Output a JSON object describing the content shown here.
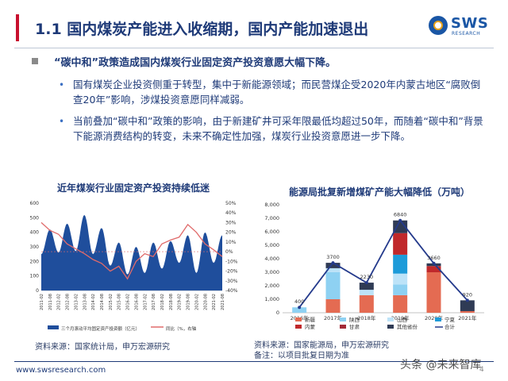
{
  "page": {
    "title": "1.1 国内煤炭产能进入收缩期，国内产能加速退出",
    "logo_text": "SWS",
    "logo_sub": "RESEARCH",
    "heading": "“碳中和”政策造成国内煤炭行业固定资产投资意愿大幅下降。",
    "bullet1": "国有煤炭企业投资侧重于转型，集中于新能源领域；而民营煤企受2020年内蒙古地区“腐败倒查20年”影响，涉煤投资意愿同样减弱。",
    "bullet2": "当前叠加“碳中和”政策的影响，由于新建矿井可采年限最低均超过50年，而随着“碳中和”背景下能源消费结构的转变，未来不确定性加强，煤炭行业投资意愿进一步下降。",
    "footer_url": "www.swsresearch.com",
    "page_number": "4",
    "watermark": "头条 @未来智库"
  },
  "chart_left": {
    "title": "近年煤炭行业固定资产投资持续低迷",
    "source": "资料来源：国家统计局，申万宏源研究",
    "legend": [
      "三个月滚动平均固定资产投资额（亿元）",
      "同比（%，右轴"
    ],
    "y_left_ticks": [
      "600",
      "500",
      "400",
      "300",
      "200",
      "100",
      "0"
    ],
    "y_right_ticks": [
      "50%",
      "40%",
      "30%",
      "20%",
      "10%",
      "0%",
      "-10%",
      "-20%",
      "-30%",
      "-40%"
    ],
    "x_ticks": [
      "2011-02",
      "2011-08",
      "2012-02",
      "2012-08",
      "2013-02",
      "2013-08",
      "2014-02",
      "2014-08",
      "2015-02",
      "2015-08",
      "2016-02",
      "2016-08",
      "2017-02",
      "2017-08",
      "2018-02",
      "2018-08",
      "2019-02",
      "2019-08",
      "2020-02",
      "2020-08",
      "2021-02",
      "2021-08"
    ]
  },
  "chart_right": {
    "title": "能源局批复新增煤矿产能大幅降低（万吨）",
    "source": "资料来源：国家能源局，申万宏源研究",
    "note": "备注：以项目批复日期为准",
    "y_ticks": [
      "8,000",
      "7,000",
      "6,000",
      "5,000",
      "4,000",
      "3,000",
      "2,000",
      "1,000",
      "0"
    ],
    "legend": [
      "新疆",
      "陕西",
      "山西",
      "宁夏",
      "内蒙",
      "甘肃",
      "其他省份",
      "合计"
    ],
    "colors": {
      "新疆": "#e46b52",
      "陕西": "#8ed1f2",
      "山西": "#bde3f8",
      "宁夏": "#1d9bd9",
      "内蒙": "#c0282b",
      "甘肃": "#a32a37",
      "其他省份": "#2f3b55",
      "合计": "#243a8c"
    }
  },
  "chart_data": [
    {
      "type": "area",
      "title": "近年煤炭行业固定资产投资持续低迷",
      "series": [
        {
          "name": "三个月滚动平均固定资产投资额（亿元）",
          "x": [
            "2011-02",
            "2011-08",
            "2012-02",
            "2012-08",
            "2013-02",
            "2013-08",
            "2014-02",
            "2014-08",
            "2015-02",
            "2015-08",
            "2016-02",
            "2016-08",
            "2017-02",
            "2017-08",
            "2018-02",
            "2018-08",
            "2019-02",
            "2019-08",
            "2020-02",
            "2020-08",
            "2021-02",
            "2021-08"
          ],
          "values": [
            250,
            420,
            260,
            460,
            270,
            520,
            250,
            430,
            170,
            330,
            110,
            300,
            120,
            330,
            150,
            340,
            190,
            380,
            120,
            400,
            190,
            380
          ]
        },
        {
          "name": "同比（%，右轴",
          "axis": "right",
          "values": [
            30,
            22,
            18,
            8,
            3,
            -2,
            -8,
            -12,
            -20,
            -15,
            -28,
            -10,
            -2,
            -5,
            8,
            12,
            15,
            28,
            20,
            8,
            2,
            -5
          ]
        }
      ],
      "ylim": [
        0,
        600
      ],
      "ylim_right": [
        -40,
        50
      ]
    },
    {
      "type": "bar",
      "title": "能源局批复新增煤矿产能大幅降低（万吨）",
      "categories": [
        "2016年",
        "2017年",
        "2018年",
        "2019年",
        "2020年",
        "2021年"
      ],
      "series": [
        {
          "name": "新疆",
          "values": [
            0,
            1000,
            1300,
            1300,
            3000,
            120
          ]
        },
        {
          "name": "陕西",
          "values": [
            400,
            2000,
            0,
            800,
            0,
            0
          ]
        },
        {
          "name": "山西",
          "values": [
            0,
            300,
            400,
            800,
            0,
            0
          ]
        },
        {
          "name": "宁夏",
          "values": [
            0,
            0,
            0,
            1400,
            0,
            0
          ]
        },
        {
          "name": "内蒙",
          "values": [
            0,
            0,
            0,
            1600,
            460,
            0
          ]
        },
        {
          "name": "甘肃",
          "values": [
            0,
            0,
            0,
            0,
            0,
            0
          ]
        },
        {
          "name": "其他省份",
          "values": [
            0,
            400,
            530,
            940,
            200,
            800
          ]
        }
      ],
      "totals": {
        "name": "合计",
        "values": [
          400,
          3700,
          2230,
          6840,
          3660,
          920
        ]
      },
      "total_labels": [
        "400",
        "3700",
        "2230",
        "6840",
        "3660",
        "920"
      ],
      "ylim": [
        0,
        8000
      ]
    }
  ]
}
